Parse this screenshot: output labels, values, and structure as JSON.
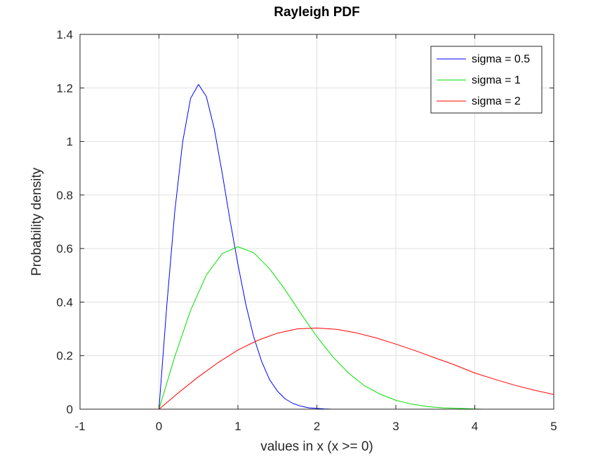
{
  "chart_data": {
    "type": "line",
    "title": "Rayleigh PDF",
    "xlabel": "values in x (x >= 0)",
    "ylabel": "Probability density",
    "xlim": [
      -1,
      5
    ],
    "ylim": [
      0,
      1.4
    ],
    "xticks": [
      -1,
      0,
      1,
      2,
      3,
      4,
      5
    ],
    "xtick_labels": [
      "-1",
      "0",
      "1",
      "2",
      "3",
      "4",
      "5"
    ],
    "yticks": [
      0,
      0.2,
      0.4,
      0.6,
      0.8,
      1,
      1.2,
      1.4
    ],
    "ytick_labels": [
      "0",
      "0.2",
      "0.4",
      "0.6",
      "0.8",
      "1",
      "1.2",
      "1.4"
    ],
    "grid": true,
    "legend_position": "top-right",
    "series": [
      {
        "name": "sigma = 0.5",
        "color": "#0000ff",
        "x": [
          -1,
          -0.5,
          0,
          0.1,
          0.2,
          0.3,
          0.4,
          0.5,
          0.6,
          0.7,
          0.8,
          0.9,
          1.0,
          1.1,
          1.2,
          1.3,
          1.4,
          1.5,
          1.6,
          1.7,
          1.8,
          1.9,
          2.0,
          2.1,
          2.2
        ],
        "y": [
          0,
          0,
          0,
          0.392,
          0.738,
          0.999,
          1.161,
          1.213,
          1.168,
          1.047,
          0.883,
          0.705,
          0.541,
          0.391,
          0.27,
          0.178,
          0.111,
          0.067,
          0.038,
          0.021,
          0.011,
          0.005,
          0.003,
          0.001,
          0
        ]
      },
      {
        "name": "sigma = 1",
        "color": "#00e000",
        "x": [
          -1,
          -0.5,
          0,
          0.2,
          0.4,
          0.6,
          0.8,
          1.0,
          1.2,
          1.4,
          1.6,
          1.8,
          2.0,
          2.2,
          2.4,
          2.6,
          2.8,
          3.0,
          3.2,
          3.4,
          3.6,
          3.8,
          4.0,
          4.1
        ],
        "y": [
          0,
          0,
          0,
          0.196,
          0.369,
          0.501,
          0.581,
          0.607,
          0.584,
          0.525,
          0.445,
          0.356,
          0.271,
          0.196,
          0.135,
          0.088,
          0.056,
          0.033,
          0.019,
          0.01,
          0.005,
          0.003,
          0.001,
          0
        ]
      },
      {
        "name": "sigma = 2",
        "color": "#ff0000",
        "x": [
          -1,
          -0.5,
          0,
          0.25,
          0.5,
          0.75,
          1.0,
          1.25,
          1.5,
          1.75,
          2.0,
          2.25,
          2.5,
          2.75,
          3.0,
          3.25,
          3.5,
          3.75,
          4.0,
          4.25,
          4.5,
          4.75,
          5.0
        ],
        "y": [
          0,
          0,
          0,
          0.062,
          0.121,
          0.174,
          0.221,
          0.257,
          0.284,
          0.3,
          0.303,
          0.298,
          0.285,
          0.266,
          0.243,
          0.218,
          0.191,
          0.165,
          0.135,
          0.112,
          0.09,
          0.071,
          0.055
        ]
      }
    ]
  }
}
